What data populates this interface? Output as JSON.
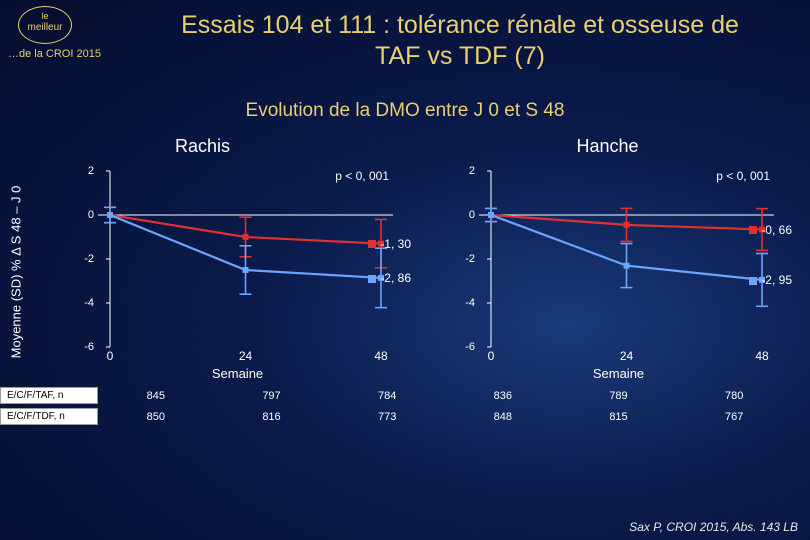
{
  "header": {
    "logo_line1": "le",
    "logo_line2": "meilleur",
    "sublogo": "…de la CROI 2015",
    "title": "Essais 104 et 111 : tolérance rénale et osseuse de TAF vs TDF (7)"
  },
  "subtitle": "Evolution de la DMO entre J 0 et S 48",
  "ylabel": "Moyenne (SD)  % Δ S 48 – J 0",
  "charts": {
    "shared": {
      "ylim": [
        -6,
        2
      ],
      "ytick_step": 2,
      "xticks": [
        0,
        24,
        48
      ],
      "xlabel": "Semaine",
      "marker_size": 6,
      "err_cap": 6,
      "line_width": 2.2,
      "err_width": 1.6,
      "font_size_tick": 11,
      "label_fontsize": 13
    },
    "left": {
      "title": "Rachis",
      "pval": "p < 0, 001",
      "series": [
        {
          "name": "E/C/F/TAF",
          "color": "#e03030",
          "x": [
            0,
            24,
            48
          ],
          "y": [
            0,
            -1.0,
            -1.3
          ],
          "err": [
            0.35,
            0.9,
            1.1
          ],
          "end_label": "-1, 30",
          "end_label_bg": "#e03030"
        },
        {
          "name": "E/C/F/TDF",
          "color": "#6aa5ff",
          "x": [
            0,
            24,
            48
          ],
          "y": [
            0,
            -2.5,
            -2.86
          ],
          "err": [
            0.35,
            1.1,
            1.35
          ],
          "end_label": "-2, 86",
          "end_label_bg": "#6aa5ff"
        }
      ]
    },
    "right": {
      "title": "Hanche",
      "pval": "p < 0, 001",
      "series": [
        {
          "name": "E/C/F/TAF",
          "color": "#e03030",
          "x": [
            0,
            24,
            48
          ],
          "y": [
            0,
            -0.45,
            -0.66
          ],
          "err": [
            0.3,
            0.75,
            0.95
          ],
          "end_label": "-0, 66",
          "end_label_bg": "#e03030"
        },
        {
          "name": "E/C/F/TDF",
          "color": "#6aa5ff",
          "x": [
            0,
            24,
            48
          ],
          "y": [
            0,
            -2.3,
            -2.95
          ],
          "err": [
            0.3,
            1.0,
            1.2
          ],
          "end_label": "-2, 95",
          "end_label_bg": "#6aa5ff"
        }
      ]
    }
  },
  "ntable": {
    "rows": [
      {
        "label": "E/C/F/TAF, n",
        "cells": [
          "845",
          "797",
          "784",
          "836",
          "789",
          "780"
        ]
      },
      {
        "label": "E/C/F/TDF, n",
        "cells": [
          "850",
          "816",
          "773",
          "848",
          "815",
          "767"
        ]
      }
    ]
  },
  "citation": "Sax P, CROI 2015, Abs. 143 LB",
  "colors": {
    "accent": "#e8d070",
    "text": "#ffffff"
  }
}
